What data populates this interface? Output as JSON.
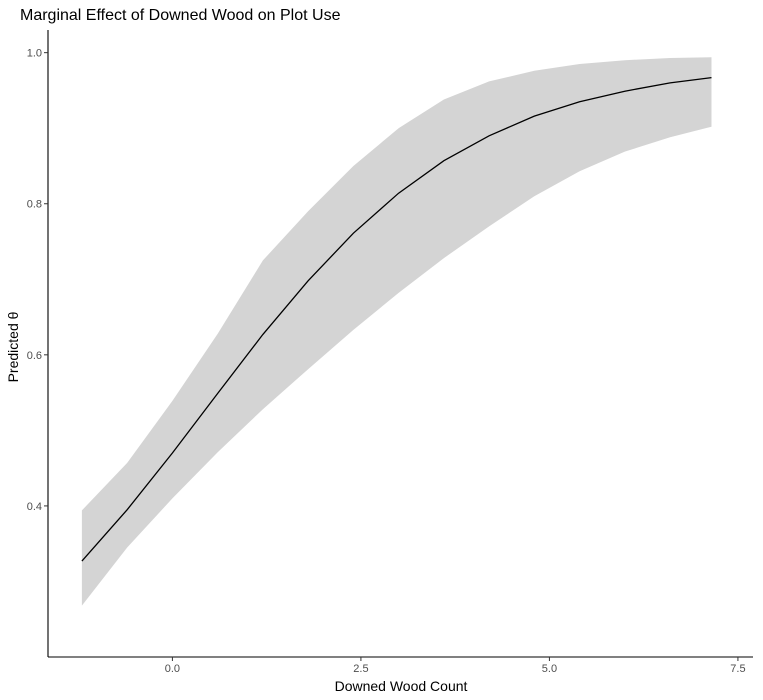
{
  "chart_data": {
    "type": "line",
    "title": "Marginal Effect of Downed Wood on Plot Use",
    "xlabel": "Downed Wood Count",
    "ylabel": "Predicted θ",
    "xlim": [
      -1.65,
      7.7
    ],
    "ylim": [
      0.2,
      1.03
    ],
    "x_ticks": [
      0.0,
      2.5,
      5.0,
      7.5
    ],
    "x_tick_labels": [
      "0.0",
      "2.5",
      "5.0",
      "7.5"
    ],
    "y_ticks": [
      0.4,
      0.6,
      0.8,
      1.0
    ],
    "y_tick_labels": [
      "0.4",
      "0.6",
      "0.8",
      "1.0"
    ],
    "grid": false,
    "legend": "none",
    "series": [
      {
        "x": [
          -1.2,
          -0.6,
          0.0,
          0.6,
          1.2,
          1.8,
          2.4,
          3.0,
          3.6,
          4.2,
          4.8,
          5.4,
          6.0,
          6.6,
          7.15
        ],
        "y": [
          0.327,
          0.395,
          0.47,
          0.549,
          0.627,
          0.698,
          0.761,
          0.814,
          0.857,
          0.89,
          0.916,
          0.935,
          0.949,
          0.96,
          0.967
        ],
        "lower": [
          0.268,
          0.345,
          0.41,
          0.471,
          0.528,
          0.581,
          0.633,
          0.682,
          0.728,
          0.77,
          0.81,
          0.843,
          0.869,
          0.888,
          0.902
        ],
        "upper": [
          0.394,
          0.457,
          0.539,
          0.628,
          0.725,
          0.79,
          0.85,
          0.9,
          0.938,
          0.962,
          0.976,
          0.985,
          0.99,
          0.993,
          0.994
        ]
      }
    ],
    "colors": {
      "band": "#d4d4d4",
      "line": "#000000"
    }
  }
}
